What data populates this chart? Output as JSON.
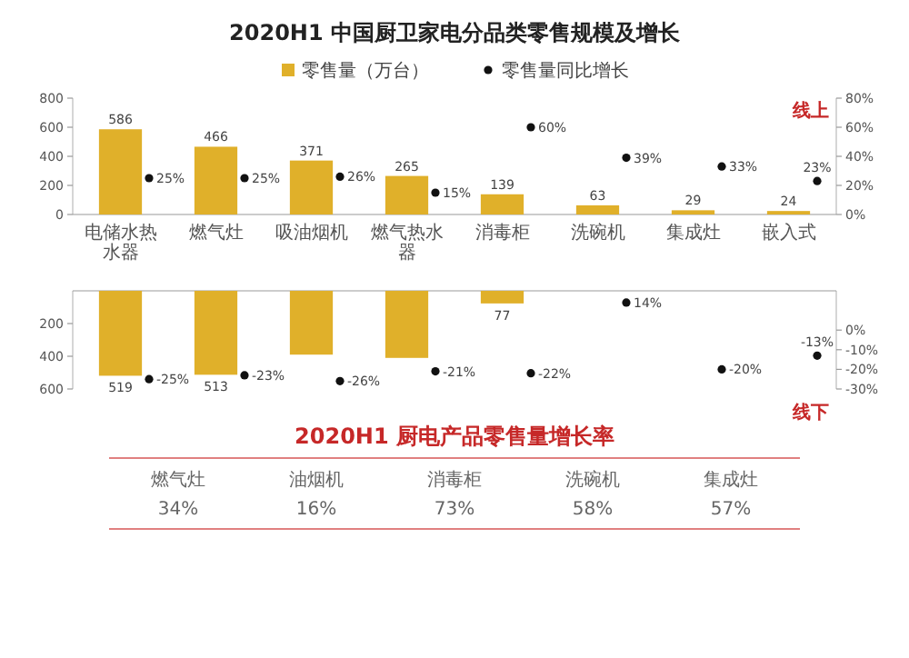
{
  "chart_data": [
    {
      "type": "bar",
      "title": "2020H1 中国厨卫家电分品类零售规模及增长",
      "categories": [
        "电储水热水器",
        "燃气灶",
        "吸油烟机",
        "燃气热水器",
        "消毒柜",
        "洗碗机",
        "集成灶",
        "嵌入式"
      ],
      "series": [
        {
          "name": "零售量（万台）",
          "color": "#e0b02a",
          "values": [
            586,
            466,
            371,
            265,
            139,
            63,
            29,
            24
          ],
          "value_labels": [
            "586",
            "466",
            "371",
            "265",
            "139",
            "63",
            "29",
            "24"
          ]
        },
        {
          "name": "零售量同比增长",
          "type": "scatter",
          "axis": "y2",
          "color": "#111111",
          "values": [
            25,
            25,
            26,
            15,
            60,
            39,
            33,
            23
          ],
          "value_labels": [
            "25%",
            "25%",
            "26%",
            "15%",
            "60%",
            "39%",
            "33%",
            "23%"
          ]
        }
      ],
      "ylim": [
        0,
        800
      ],
      "yticks": [
        0,
        200,
        400,
        600,
        800
      ],
      "y2lim": [
        0,
        80
      ],
      "y2ticks": [
        {
          "value": 0,
          "label": "0%"
        },
        {
          "value": 20,
          "label": "20%"
        },
        {
          "value": 40,
          "label": "40%"
        },
        {
          "value": 60,
          "label": "60%"
        },
        {
          "value": 80,
          "label": "80%"
        }
      ],
      "legend": "top",
      "marker": "circle",
      "annotations": [
        "线上"
      ]
    },
    {
      "type": "bar",
      "categories": [
        null,
        null,
        null,
        null,
        null,
        null,
        null,
        null
      ],
      "series": [
        {
          "color": "#e0b02a",
          "values": [
            519,
            513,
            390,
            410,
            77,
            null,
            null,
            null
          ],
          "value_labels": [
            "519",
            "513",
            null,
            null,
            "77",
            null,
            null,
            null
          ]
        },
        {
          "type": "scatter",
          "axis": "y2",
          "color": "#111111",
          "values": [
            -25,
            -23,
            -26,
            -21,
            -22,
            14,
            -20,
            -13
          ],
          "value_labels": [
            "-25%",
            "-23%",
            "-26%",
            "-21%",
            "-22%",
            "14%",
            "-20%",
            "-13%"
          ]
        }
      ],
      "ylim": [
        600,
        0
      ],
      "yticks": [
        200,
        400,
        600
      ],
      "y2lim": [
        -30,
        20
      ],
      "y2ticks": [
        {
          "value": 0,
          "label": "0%"
        },
        {
          "value": -10,
          "label": "-10%"
        },
        {
          "value": -20,
          "label": "-20%"
        },
        {
          "value": -30,
          "label": "-30%"
        }
      ],
      "tick_labels": "y",
      "marker": "circle",
      "annotations": [
        "线下"
      ]
    },
    {
      "type": "other",
      "title": "2020H1 厨电产品零售量增长率",
      "categories": [
        "燃气灶",
        "油烟机",
        "消毒柜",
        "洗碗机",
        "集成灶"
      ],
      "value_labels": [
        "34%",
        "16%",
        "73%",
        "58%",
        "57%"
      ]
    }
  ]
}
